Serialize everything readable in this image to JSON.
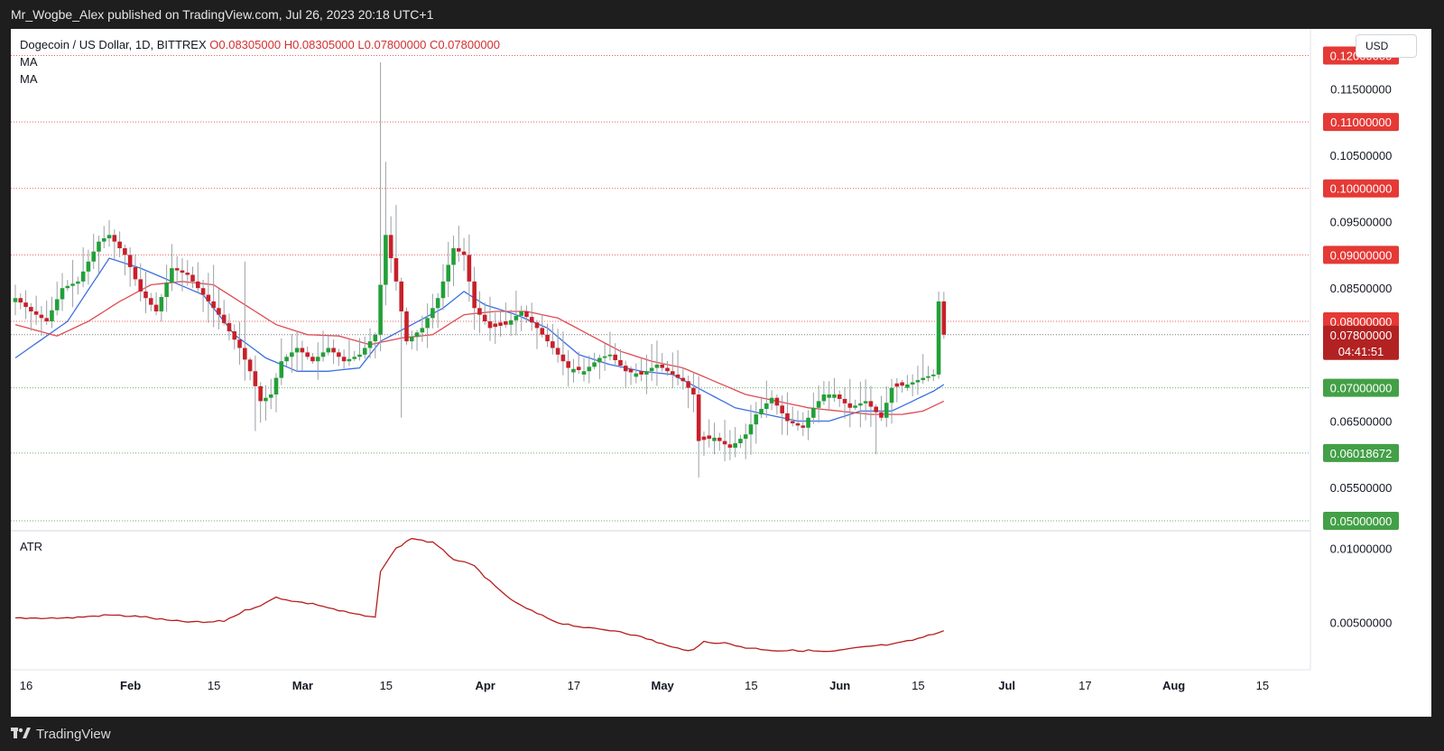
{
  "header": {
    "published_text": "Mr_Wogbe_Alex published on TradingView.com, Jul 26, 2023 20:18 UTC+1"
  },
  "legend": {
    "symbol": "Dogecoin / US Dollar, 1D, BITTREX",
    "open": "O0.08305000",
    "high": "H0.08305000",
    "low": "L0.07800000",
    "close": "C0.07800000",
    "ma1": "MA",
    "ma2": "MA"
  },
  "currency_button": "USD",
  "atr_label": "ATR",
  "footer": {
    "brand": "TradingView"
  },
  "colors": {
    "up": "#22a038",
    "down": "#c8202a",
    "ma_fast": "#3b6fe0",
    "ma_slow": "#e04a52",
    "atr": "#b71c1c",
    "level_red": "#e53935",
    "level_green": "#43a047"
  },
  "chart_data": [
    {
      "type": "candlestick",
      "price_axis_labels": [
        "0.11500000",
        "0.10500000",
        "0.09500000",
        "0.08500000",
        "0.06500000",
        "0.05500000"
      ],
      "ylim": [
        0.0485,
        0.124
      ],
      "horizontal_levels": [
        {
          "value": 0.12,
          "label": "0.12000000",
          "color": "red"
        },
        {
          "value": 0.11,
          "label": "0.11000000",
          "color": "red"
        },
        {
          "value": 0.1,
          "label": "0.10000000",
          "color": "red"
        },
        {
          "value": 0.09,
          "label": "0.09000000",
          "color": "red"
        },
        {
          "value": 0.08,
          "label": "0.08000000",
          "color": "red"
        },
        {
          "value": 0.07,
          "label": "0.07000000",
          "color": "green"
        },
        {
          "value": 0.06018672,
          "label": "0.06018672",
          "color": "green"
        },
        {
          "value": 0.05,
          "label": "0.05000000",
          "color": "green"
        }
      ],
      "last_price": {
        "value": 0.078,
        "label": "0.07800000",
        "countdown": "04:41:51"
      },
      "time_axis_labels": [
        "16",
        "Feb",
        "15",
        "Mar",
        "15",
        "Apr",
        "17",
        "May",
        "15",
        "Jun",
        "15",
        "Jul",
        "17",
        "Aug",
        "15"
      ],
      "anchors": [
        [
          0,
          0.0835
        ],
        [
          3,
          0.0815
        ],
        [
          6,
          0.08
        ],
        [
          9,
          0.085
        ],
        [
          12,
          0.086
        ],
        [
          16,
          0.092
        ],
        [
          18,
          0.093
        ],
        [
          21,
          0.09
        ],
        [
          24,
          0.0845
        ],
        [
          27,
          0.0815
        ],
        [
          30,
          0.088
        ],
        [
          33,
          0.087
        ],
        [
          36,
          0.084
        ],
        [
          39,
          0.081
        ],
        [
          41,
          0.0785
        ],
        [
          43,
          0.076
        ],
        [
          45,
          0.0725
        ],
        [
          47,
          0.068
        ],
        [
          49,
          0.069
        ],
        [
          51,
          0.074
        ],
        [
          54,
          0.076
        ],
        [
          57,
          0.074
        ],
        [
          60,
          0.076
        ],
        [
          63,
          0.074
        ],
        [
          66,
          0.075
        ],
        [
          69,
          0.078
        ],
        [
          71,
          0.093
        ],
        [
          73,
          0.086
        ],
        [
          75,
          0.077
        ],
        [
          78,
          0.079
        ],
        [
          81,
          0.0835
        ],
        [
          84,
          0.091
        ],
        [
          86,
          0.09
        ],
        [
          88,
          0.082
        ],
        [
          91,
          0.079
        ],
        [
          94,
          0.0795
        ],
        [
          97,
          0.0815
        ],
        [
          100,
          0.079
        ],
        [
          103,
          0.076
        ],
        [
          106,
          0.073
        ],
        [
          109,
          0.0725
        ],
        [
          112,
          0.0745
        ],
        [
          114,
          0.075
        ],
        [
          117,
          0.0725
        ],
        [
          120,
          0.072
        ],
        [
          123,
          0.0735
        ],
        [
          126,
          0.072
        ],
        [
          128,
          0.071
        ],
        [
          130,
          0.069
        ],
        [
          131,
          0.062
        ],
        [
          134,
          0.0625
        ],
        [
          137,
          0.061
        ],
        [
          140,
          0.063
        ],
        [
          142,
          0.066
        ],
        [
          145,
          0.0685
        ],
        [
          148,
          0.065
        ],
        [
          151,
          0.064
        ],
        [
          153,
          0.067
        ],
        [
          155,
          0.069
        ],
        [
          157,
          0.069
        ],
        [
          160,
          0.067
        ],
        [
          163,
          0.068
        ],
        [
          166,
          0.0655
        ],
        [
          168,
          0.07
        ],
        [
          171,
          0.0705
        ],
        [
          174,
          0.0715
        ],
        [
          176,
          0.072
        ],
        [
          177,
          0.083
        ],
        [
          178,
          0.078
        ]
      ],
      "series": [
        {
          "name": "MA",
          "anchors": [
            [
              0,
              0.0745
            ],
            [
              10,
              0.08
            ],
            [
              18,
              0.0895
            ],
            [
              24,
              0.088
            ],
            [
              30,
              0.086
            ],
            [
              36,
              0.084
            ],
            [
              42,
              0.078
            ],
            [
              48,
              0.0745
            ],
            [
              54,
              0.0725
            ],
            [
              60,
              0.0725
            ],
            [
              66,
              0.073
            ],
            [
              70,
              0.077
            ],
            [
              76,
              0.0795
            ],
            [
              82,
              0.082
            ],
            [
              86,
              0.0845
            ],
            [
              90,
              0.0825
            ],
            [
              96,
              0.081
            ],
            [
              102,
              0.079
            ],
            [
              108,
              0.075
            ],
            [
              114,
              0.0735
            ],
            [
              120,
              0.0725
            ],
            [
              126,
              0.072
            ],
            [
              132,
              0.0695
            ],
            [
              138,
              0.067
            ],
            [
              144,
              0.066
            ],
            [
              150,
              0.065
            ],
            [
              156,
              0.065
            ],
            [
              162,
              0.0665
            ],
            [
              168,
              0.0665
            ],
            [
              172,
              0.068
            ],
            [
              176,
              0.0695
            ],
            [
              178,
              0.0705
            ]
          ]
        },
        {
          "name": "MA",
          "anchors": [
            [
              0,
              0.0795
            ],
            [
              8,
              0.0778
            ],
            [
              14,
              0.08
            ],
            [
              20,
              0.083
            ],
            [
              26,
              0.0855
            ],
            [
              32,
              0.086
            ],
            [
              38,
              0.0855
            ],
            [
              44,
              0.0825
            ],
            [
              50,
              0.0795
            ],
            [
              56,
              0.078
            ],
            [
              62,
              0.0778
            ],
            [
              68,
              0.0765
            ],
            [
              74,
              0.0775
            ],
            [
              80,
              0.078
            ],
            [
              86,
              0.081
            ],
            [
              92,
              0.0815
            ],
            [
              98,
              0.0815
            ],
            [
              104,
              0.0805
            ],
            [
              110,
              0.078
            ],
            [
              116,
              0.0755
            ],
            [
              122,
              0.074
            ],
            [
              128,
              0.073
            ],
            [
              134,
              0.071
            ],
            [
              140,
              0.069
            ],
            [
              146,
              0.068
            ],
            [
              152,
              0.067
            ],
            [
              158,
              0.0665
            ],
            [
              164,
              0.066
            ],
            [
              170,
              0.066
            ],
            [
              174,
              0.0665
            ],
            [
              178,
              0.068
            ]
          ]
        }
      ]
    },
    {
      "type": "line",
      "name": "ATR",
      "axis_labels": [
        "0.01000000",
        "0.00500000"
      ],
      "ylim": [
        0.0018,
        0.0112
      ],
      "anchors": [
        [
          0,
          0.0053
        ],
        [
          10,
          0.0053
        ],
        [
          18,
          0.0055
        ],
        [
          24,
          0.0054
        ],
        [
          30,
          0.0051
        ],
        [
          36,
          0.005
        ],
        [
          40,
          0.0051
        ],
        [
          44,
          0.0058
        ],
        [
          48,
          0.0063
        ],
        [
          50,
          0.0067
        ],
        [
          54,
          0.0064
        ],
        [
          58,
          0.0062
        ],
        [
          62,
          0.0058
        ],
        [
          66,
          0.0055
        ],
        [
          69,
          0.0053
        ],
        [
          70,
          0.0085
        ],
        [
          73,
          0.01
        ],
        [
          76,
          0.0107
        ],
        [
          80,
          0.0104
        ],
        [
          84,
          0.0093
        ],
        [
          88,
          0.0088
        ],
        [
          92,
          0.0074
        ],
        [
          96,
          0.0063
        ],
        [
          100,
          0.0056
        ],
        [
          104,
          0.005
        ],
        [
          110,
          0.0046
        ],
        [
          116,
          0.0044
        ],
        [
          122,
          0.0038
        ],
        [
          126,
          0.0033
        ],
        [
          130,
          0.0031
        ],
        [
          132,
          0.0037
        ],
        [
          136,
          0.0036
        ],
        [
          140,
          0.0033
        ],
        [
          146,
          0.0031
        ],
        [
          152,
          0.0031
        ],
        [
          156,
          0.003
        ],
        [
          160,
          0.0032
        ],
        [
          164,
          0.0034
        ],
        [
          168,
          0.0035
        ],
        [
          172,
          0.0038
        ],
        [
          176,
          0.0042
        ],
        [
          178,
          0.0045
        ]
      ]
    }
  ]
}
